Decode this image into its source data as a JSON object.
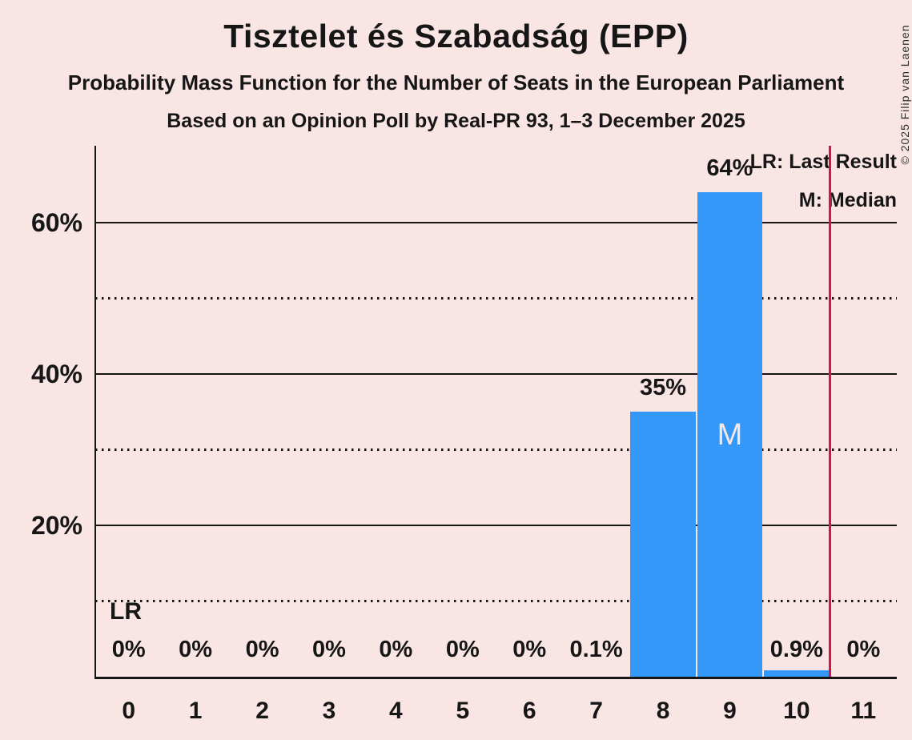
{
  "header": {
    "title": "Tisztelet és Szabadság (EPP)",
    "subtitle": "Probability Mass Function for the Number of Seats in the European Parliament",
    "poll_line": "Based on an Opinion Poll by Real-PR 93, 1–3 December 2025"
  },
  "copyright": "© 2025 Filip van Laenen",
  "chart_data": {
    "type": "bar",
    "title": "Tisztelet és Szabadság (EPP)",
    "subtitle": "Probability Mass Function for the Number of Seats in the European Parliament",
    "source_line": "Based on an Opinion Poll by Real-PR 93, 1–3 December 2025",
    "categories": [
      "0",
      "1",
      "2",
      "3",
      "4",
      "5",
      "6",
      "7",
      "8",
      "9",
      "10",
      "11"
    ],
    "values": [
      0,
      0,
      0,
      0,
      0,
      0,
      0,
      0.1,
      35,
      64,
      0.9,
      0
    ],
    "value_labels": [
      "0%",
      "0%",
      "0%",
      "0%",
      "0%",
      "0%",
      "0%",
      "0.1%",
      "35%",
      "64%",
      "0.9%",
      "0%"
    ],
    "ylim": [
      0,
      70
    ],
    "yticks_labeled": [
      {
        "value": 20,
        "label": "20%"
      },
      {
        "value": 40,
        "label": "40%"
      },
      {
        "value": 60,
        "label": "60%"
      }
    ],
    "yticks_dotted": [
      10,
      30,
      50
    ],
    "grid": true,
    "median": {
      "category": "9",
      "label": "M"
    },
    "last_result": {
      "label": "LR",
      "label_at_category": "0",
      "line_after_category": "10"
    },
    "legend": {
      "lr": "LR: Last Result",
      "m": "M: Median"
    },
    "legend_position": "top-right",
    "colors": {
      "background": "#fae5e5",
      "bar": "#3498f8",
      "last_result_line": "#d81243",
      "text": "#161616",
      "median_label": "#fae5e5"
    }
  }
}
